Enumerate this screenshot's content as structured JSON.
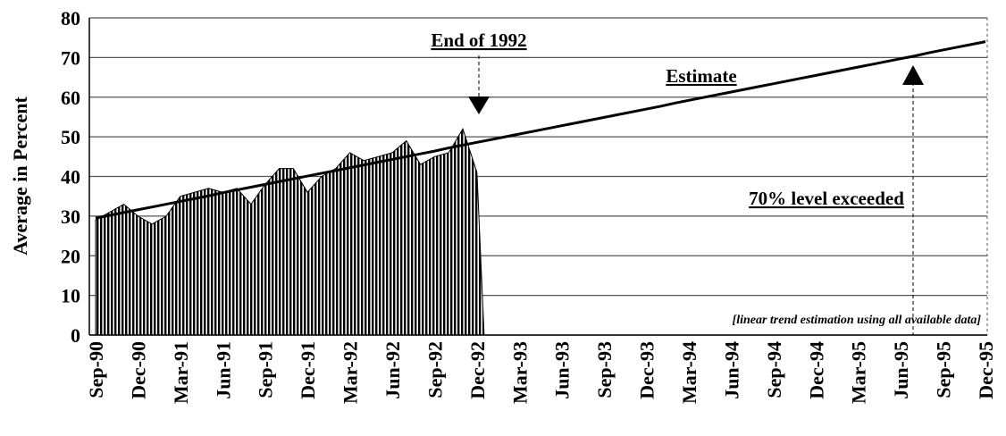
{
  "chart_data": {
    "type": "area",
    "y_label": "Average in Percent",
    "categories": [
      "Sep-90",
      null,
      null,
      "Dec-90",
      null,
      null,
      "Mar-91",
      null,
      null,
      "Jun-91",
      null,
      null,
      "Sep-91",
      null,
      null,
      "Dec-91",
      null,
      null,
      "Mar-92",
      null,
      null,
      "Jun-92",
      null,
      null,
      "Sep-92",
      null,
      null,
      "Dec-92",
      null,
      null,
      "Mar-93",
      null,
      null,
      "Jun-93",
      null,
      null,
      "Sep-93",
      null,
      null,
      "Dec-93",
      null,
      null,
      "Mar-94",
      null,
      null,
      "Jun-94",
      null,
      null,
      "Sep-94",
      null,
      null,
      "Dec-94",
      null,
      null,
      "Mar-95",
      null,
      null,
      "Jun-95",
      null,
      null,
      "Sep-95",
      null,
      null,
      "Dec-95"
    ],
    "series": [
      {
        "name": null,
        "type": "area",
        "color": "#000000",
        "values": [
          29,
          31,
          33,
          30,
          28,
          30,
          35,
          36,
          37,
          36,
          37,
          33,
          38,
          42,
          42,
          36,
          40,
          42,
          46,
          44,
          45,
          46,
          49,
          43,
          45,
          46,
          52,
          41,
          null,
          null,
          null,
          null,
          null,
          null,
          null,
          null,
          null,
          null,
          null,
          null,
          null,
          null,
          null,
          null,
          null,
          null,
          null,
          null,
          null,
          null,
          null,
          null,
          null,
          null,
          null,
          null,
          null,
          null,
          null,
          null,
          null,
          null,
          null,
          null
        ]
      },
      {
        "name": "Estimate",
        "type": "line",
        "color": "#000000",
        "values": [
          29.5,
          30.2,
          30.9,
          31.6,
          32.3,
          33.0,
          33.7,
          34.4,
          35.1,
          35.9,
          36.6,
          37.3,
          38.0,
          38.7,
          39.4,
          40.1,
          40.8,
          41.5,
          42.2,
          42.9,
          43.6,
          44.3,
          45.0,
          45.7,
          46.4,
          47.2,
          47.9,
          48.6,
          49.3,
          50.0,
          50.7,
          51.4,
          52.1,
          52.8,
          53.5,
          54.2,
          54.9,
          55.6,
          56.3,
          57.0,
          57.7,
          58.5,
          59.2,
          59.9,
          60.6,
          61.3,
          62.0,
          62.7,
          63.4,
          64.1,
          64.8,
          65.5,
          66.2,
          66.9,
          67.6,
          68.3,
          69.0,
          69.7,
          70.4,
          71.2,
          71.9,
          72.6,
          73.3,
          74.0
        ]
      }
    ],
    "ylim": [
      0,
      80
    ],
    "yticks": [
      0,
      10,
      20,
      30,
      40,
      50,
      60,
      70,
      80
    ],
    "grid": true,
    "annotations": [
      "End of 1992",
      "70% level exceeded",
      "[linear trend estimation using all available data]"
    ]
  }
}
